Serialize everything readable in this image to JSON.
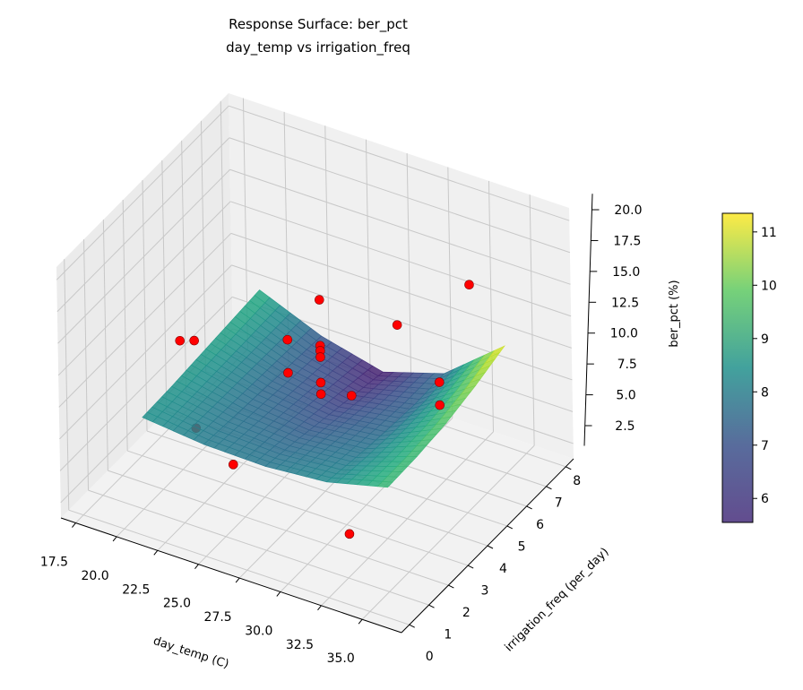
{
  "chart_data": {
    "type": "surface3d",
    "title": "Response Surface: ber_pct",
    "subtitle": "day_temp vs irrigation_freq",
    "xlabel": "day_temp (C)",
    "ylabel": "irrigation_freq (per_day)",
    "zlabel": "ber_pct (%)",
    "xlim": [
      16.6,
      37.4
    ],
    "ylim": [
      -0.4,
      8.4
    ],
    "zlim": [
      1.3,
      21.0
    ],
    "xticks": [
      "17.5",
      "20.0",
      "22.5",
      "25.0",
      "27.5",
      "30.0",
      "32.5",
      "35.0"
    ],
    "yticks": [
      "0",
      "1",
      "2",
      "3",
      "4",
      "5",
      "6",
      "7",
      "8"
    ],
    "zticks": [
      "2.5",
      "5.0",
      "7.5",
      "10.0",
      "12.5",
      "15.0",
      "17.5",
      "20.0"
    ],
    "grid": true,
    "surface": {
      "colormap": "viridis",
      "x": [
        20,
        23.75,
        27.5,
        31.25,
        35
      ],
      "y": [
        1,
        2.5,
        4,
        5.5,
        7
      ],
      "z": [
        [
          8.5,
          8.0,
          7.9,
          8.3,
          9.5
        ],
        [
          8.6,
          7.8,
          7.5,
          7.9,
          9.6
        ],
        [
          8.8,
          7.6,
          7.0,
          7.6,
          9.9
        ],
        [
          9.0,
          7.4,
          6.5,
          7.4,
          10.5
        ],
        [
          9.2,
          7.2,
          6.0,
          7.5,
          11.3
        ]
      ]
    },
    "points": {
      "color": "#ff0000",
      "data": [
        [
          18.6,
          4.1,
          9.1
        ],
        [
          19.6,
          4.0,
          9.7
        ],
        [
          24.6,
          4.6,
          11.0
        ],
        [
          26.6,
          4.6,
          15.0
        ],
        [
          26.6,
          4.6,
          11.4
        ],
        [
          26.6,
          4.6,
          11.0
        ],
        [
          26.6,
          4.6,
          10.5
        ],
        [
          31.6,
          4.4,
          15.5
        ],
        [
          34.6,
          5.6,
          18.1
        ],
        [
          35.6,
          3.2,
          14.6
        ],
        [
          35.6,
          3.2,
          12.8
        ],
        [
          20.6,
          3.2,
          4.5
        ],
        [
          22.6,
          3.4,
          2.2
        ],
        [
          32.6,
          1.0,
          4.8
        ],
        [
          24.6,
          4.6,
          8.4
        ],
        [
          26.6,
          4.6,
          8.5
        ],
        [
          26.6,
          4.6,
          7.6
        ],
        [
          28.6,
          4.5,
          8.5
        ]
      ]
    },
    "colorbar": {
      "range": [
        5.55,
        11.35
      ],
      "ticks": [
        "6",
        "7",
        "8",
        "9",
        "10",
        "11"
      ]
    }
  }
}
